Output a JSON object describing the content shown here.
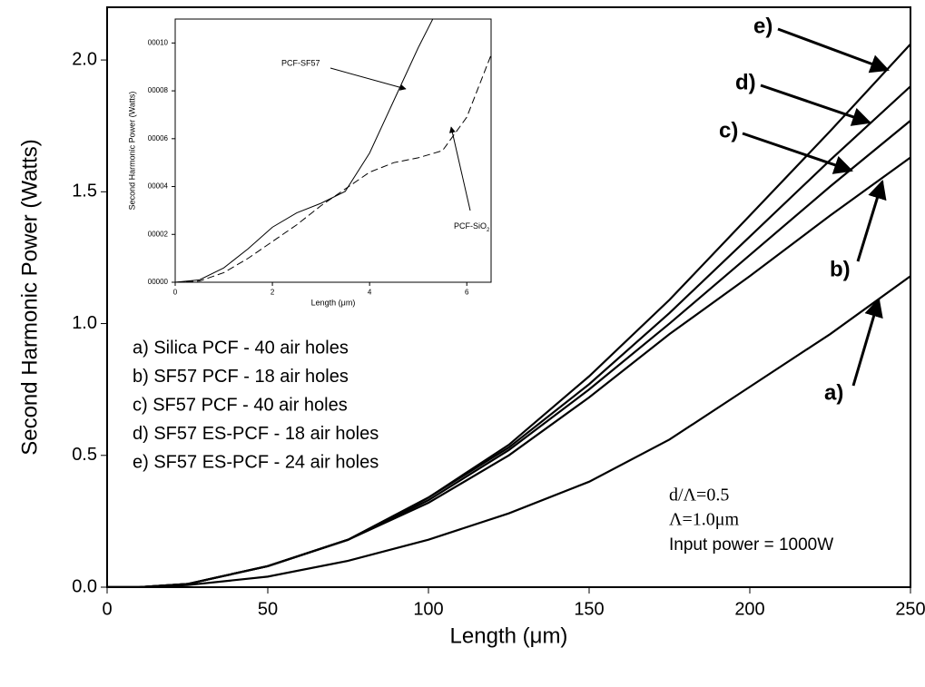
{
  "chart_data": [
    {
      "type": "line",
      "x_label": "Length (μm)",
      "y_label": "Second Harmonic Power (Watts)",
      "x": [
        0,
        10,
        25,
        50,
        75,
        100,
        125,
        150,
        175,
        200,
        225,
        250
      ],
      "series": [
        {
          "name": "a) Silica PCF - 40 air holes",
          "color": "#000000",
          "values": [
            0,
            0,
            0.008,
            0.04,
            0.1,
            0.18,
            0.28,
            0.4,
            0.56,
            0.76,
            0.96,
            1.18
          ]
        },
        {
          "name": "b) SF57 PCF - 18 air holes",
          "color": "#000000",
          "values": [
            0,
            0,
            0.012,
            0.08,
            0.18,
            0.32,
            0.5,
            0.72,
            0.96,
            1.18,
            1.41,
            1.63
          ]
        },
        {
          "name": "c) SF57 PCF - 40 air holes",
          "color": "#000000",
          "values": [
            0,
            0,
            0.012,
            0.08,
            0.18,
            0.33,
            0.52,
            0.75,
            1.0,
            1.26,
            1.52,
            1.77
          ]
        },
        {
          "name": "d) SF57 ES-PCF - 18 air holes",
          "color": "#000000",
          "values": [
            0,
            0,
            0.012,
            0.08,
            0.18,
            0.34,
            0.53,
            0.77,
            1.04,
            1.33,
            1.62,
            1.9
          ]
        },
        {
          "name": "e) SF57 ES-PCF - 24 air holes",
          "color": "#000000",
          "values": [
            0,
            0,
            0.012,
            0.08,
            0.18,
            0.34,
            0.54,
            0.8,
            1.09,
            1.41,
            1.73,
            2.06
          ]
        }
      ],
      "curve_labels": [
        "a)",
        "b)",
        "c)",
        "d)",
        "e)"
      ],
      "notes": [
        "d/Λ=0.5",
        "Λ=1.0μm",
        "Input power = 1000W"
      ],
      "xlim": [
        0,
        250
      ],
      "xticks": [
        0,
        50,
        100,
        150,
        200,
        250
      ],
      "ylim": [
        0,
        2.2
      ],
      "yticks": [
        {
          "value": 0,
          "label": "0.0"
        },
        {
          "value": 0.5,
          "label": "0.5"
        },
        {
          "value": 1,
          "label": "1.0"
        },
        {
          "value": 1.5,
          "label": "1.5"
        },
        {
          "value": 2,
          "label": "2.0"
        }
      ]
    },
    {
      "type": "line",
      "x_label": "Length (μm)",
      "y_label": "Second Harmonic Power (Watts)",
      "x": [
        0,
        0.5,
        1,
        1.5,
        2,
        2.5,
        3,
        3.5,
        4,
        4.5,
        5,
        5.5,
        6,
        6.5
      ],
      "series": [
        {
          "name": "PCF-SF57",
          "color": "#000000",
          "dash": "solid",
          "values": [
            0,
            0.1,
            0.6,
            1.4,
            2.3,
            2.9,
            3.3,
            3.8,
            5.4,
            7.6,
            9.8,
            11.8,
            null,
            null
          ]
        },
        {
          "name": "PCF-SiO",
          "sub": "2",
          "color": "#000000",
          "dash": "dashed",
          "values": [
            0,
            0.05,
            0.4,
            1.0,
            1.7,
            2.4,
            3.2,
            3.9,
            4.6,
            5.0,
            5.2,
            5.5,
            6.9,
            9.5
          ]
        }
      ],
      "xlim": [
        0,
        6.5
      ],
      "xticks": [
        0,
        2,
        4,
        6
      ],
      "ylim": [
        0,
        11
      ],
      "yticks": [
        {
          "value": 0,
          "label": "00000"
        },
        {
          "value": 2,
          "label": "00002"
        },
        {
          "value": 4,
          "label": "00004"
        },
        {
          "value": 6,
          "label": "00006"
        },
        {
          "value": 8,
          "label": "00008"
        },
        {
          "value": 10,
          "label": "00010"
        }
      ]
    }
  ]
}
